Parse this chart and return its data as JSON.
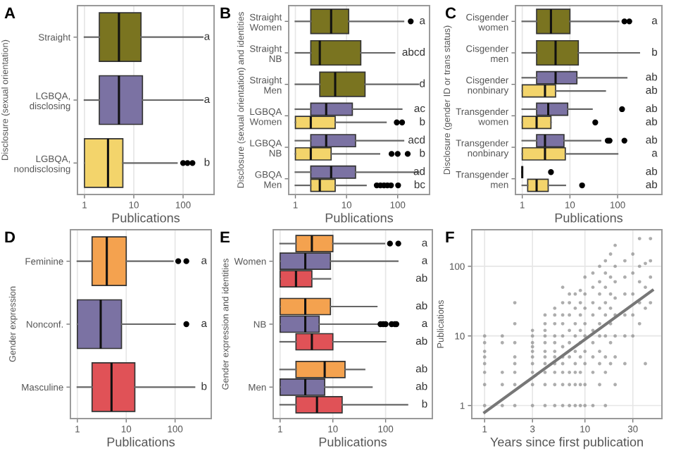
{
  "chart_data": [
    {
      "type": "box",
      "title": "A",
      "orientation": "horizontal",
      "xlabel": "Publications",
      "ylabel": "Disclosure (sexual orientation)",
      "log": "x",
      "grid": "x",
      "xlim": [
        0.72,
        425
      ],
      "xticks": [
        1,
        10,
        100
      ],
      "categories": [
        "Straight",
        "LGBQA,\ndisclosing",
        "LGBQA,\nnondisclosing"
      ],
      "series": [
        {
          "colors": [
            "#7a7420",
            "#7b72a3",
            "#f3d46b"
          ],
          "value_labels": [
            "a",
            "a",
            "b"
          ],
          "boxes": [
            {
              "low": 1,
              "q1": 2,
              "median": 5,
              "q3": 14,
              "high": 250
            },
            {
              "low": 1,
              "q1": 2,
              "median": 5,
              "q3": 15,
              "high": 250
            },
            {
              "low": 1,
              "q1": 1,
              "median": 3,
              "q3": 6,
              "high": 75,
              "outliers": [
                100,
                123,
                155
              ]
            }
          ]
        }
      ]
    },
    {
      "type": "box",
      "title": "B",
      "orientation": "horizontal",
      "xlabel": "Publications",
      "ylabel": "Disclosure (sexual orientation) and identities",
      "log": "x",
      "grid": "x",
      "xlim": [
        0.74,
        420
      ],
      "xticks": [
        1,
        10,
        100
      ],
      "categories": [
        "Straight\nWomen",
        "Straight\nNB",
        "Straight\nMen",
        "LGBQA\nWomen",
        "LGBQA\nNB",
        "GBQA\nMen"
      ],
      "series": [
        {
          "color": "#7a7420",
          "value_labels": [
            "a",
            "abcd",
            "d",
            null,
            null,
            null
          ],
          "boxes": [
            {
              "low": 1,
              "q1": 2,
              "median": 5,
              "q3": 11,
              "high": 130,
              "outliers": [
                180
              ]
            },
            {
              "low": 1,
              "q1": 2,
              "median": 3,
              "q3": 19,
              "high": 87
            },
            {
              "low": 1,
              "q1": 3,
              "median": 6,
              "q3": 23,
              "high": 256
            },
            null,
            null,
            null
          ]
        },
        {
          "color": "#7b72a3",
          "value_labels": [
            null,
            null,
            null,
            "ac",
            "acd",
            "ad"
          ],
          "boxes": [
            null,
            null,
            null,
            {
              "low": 1,
              "q1": 2,
              "median": 4,
              "q3": 13,
              "high": 120
            },
            {
              "low": 1,
              "q1": 2,
              "median": 4,
              "q3": 15,
              "high": 130
            },
            {
              "low": 1,
              "q1": 2,
              "median": 5,
              "q3": 15,
              "high": 256
            }
          ]
        },
        {
          "color": "#f3d46b",
          "value_labels": [
            null,
            null,
            null,
            "b",
            "b",
            "bc"
          ],
          "boxes": [
            null,
            null,
            null,
            {
              "low": 1,
              "q1": 1,
              "median": 2,
              "q3": 6,
              "high": 59,
              "outliers": [
                96,
                122
              ]
            },
            {
              "low": 1,
              "q1": 1,
              "median": 2,
              "q3": 5,
              "high": 44,
              "outliers": [
                76,
                100,
                157
              ]
            },
            {
              "low": 1,
              "q1": 2,
              "median": 3,
              "q3": 6,
              "high": 24,
              "outliers": [
                39,
                46,
                54,
                63,
                74,
                102
              ]
            }
          ]
        }
      ]
    },
    {
      "type": "box",
      "title": "C",
      "orientation": "horizontal",
      "xlabel": "Publications",
      "ylabel": "Disclosure (gender ID or trans status)",
      "log": "x",
      "grid": "x",
      "xlim": [
        0.72,
        850
      ],
      "xticks": [
        1,
        10,
        100
      ],
      "categories": [
        "Cisgender\nwomen",
        "Cisgender\nmen",
        "Cisgender\nnonbinary",
        "Transgender\nwomen",
        "Transgender\nnonbinary",
        "Transgender\nmen"
      ],
      "series": [
        {
          "color": "#7a7420",
          "value_labels": [
            "a",
            "b",
            null,
            null,
            null,
            null
          ],
          "boxes": [
            {
              "low": 1,
              "q1": 2,
              "median": 4,
              "q3": 10,
              "high": 105,
              "outliers": [
                139,
                176
              ]
            },
            {
              "low": 1,
              "q1": 2,
              "median": 5,
              "q3": 15,
              "high": 285
            },
            null,
            null,
            null,
            null
          ]
        },
        {
          "color": "#7b72a3",
          "value_labels": [
            null,
            null,
            "ab",
            "ab",
            "ab",
            "ab"
          ],
          "boxes": [
            null,
            null,
            {
              "low": 1,
              "q1": 2,
              "median": 5,
              "q3": 14,
              "high": 155
            },
            {
              "low": 1,
              "q1": 2,
              "median": 3.5,
              "q3": 9,
              "high": 29,
              "outliers": [
                124
              ]
            },
            {
              "low": 1,
              "q1": 2,
              "median": 3,
              "q3": 7.5,
              "high": 44,
              "outliers": [
                62,
                68,
                139
              ]
            },
            {
              "low": 1,
              "q1": 1,
              "median": 1,
              "q3": 1,
              "high": 1,
              "outliers": [
                4
              ]
            }
          ]
        },
        {
          "color": "#f3d46b",
          "value_labels": [
            null,
            null,
            "ab",
            "ab",
            "a",
            "ab"
          ],
          "boxes": [
            null,
            null,
            {
              "low": 1,
              "q1": 1,
              "median": 3,
              "q3": 5,
              "high": 55
            },
            {
              "low": 1,
              "q1": 1,
              "median": 2,
              "q3": 4,
              "high": 4,
              "outliers": [
                34
              ]
            },
            {
              "low": 1,
              "q1": 1,
              "median": 3,
              "q3": 8,
              "high": 100
            },
            {
              "low": 1,
              "q1": 1.3,
              "median": 2,
              "q3": 3.5,
              "high": 8,
              "outliers": [
                18
              ]
            }
          ]
        }
      ]
    },
    {
      "type": "box",
      "title": "D",
      "orientation": "horizontal",
      "xlabel": "Publications",
      "ylabel": "Gender expression",
      "log": "x",
      "grid": "x",
      "xlim": [
        0.72,
        550
      ],
      "xticks": [
        1,
        10,
        100
      ],
      "categories": [
        "Feminine",
        "Nonconf.",
        "Masculine"
      ],
      "series": [
        {
          "colors": [
            "#f4a24f",
            "#7b72a3",
            "#e05257"
          ],
          "value_labels": [
            "a",
            "a",
            "b"
          ],
          "boxes": [
            {
              "low": 1,
              "q1": 2,
              "median": 4,
              "q3": 10,
              "high": 90,
              "outliers": [
                116,
                170
              ]
            },
            {
              "low": 1,
              "q1": 1,
              "median": 3,
              "q3": 8,
              "high": 100,
              "outliers": [
                170
              ]
            },
            {
              "low": 1,
              "q1": 2,
              "median": 5,
              "q3": 15,
              "high": 250
            }
          ]
        }
      ]
    },
    {
      "type": "box",
      "title": "E",
      "orientation": "horizontal",
      "xlabel": "Publications",
      "ylabel": "Gender expression and identities",
      "log": "x",
      "grid": "x",
      "xlim": [
        0.74,
        770
      ],
      "xticks": [
        1,
        10,
        100
      ],
      "categories": [
        "Women",
        "NB",
        "Men"
      ],
      "series": [
        {
          "color": "#f4a24f",
          "value_labels": [
            "a",
            "ab",
            "ab"
          ],
          "boxes": [
            {
              "low": 1,
              "q1": 2,
              "median": 4,
              "q3": 10,
              "high": 95,
              "outliers": [
                121,
                174
              ]
            },
            {
              "low": 1,
              "q1": 1,
              "median": 3,
              "q3": 9,
              "high": 68
            },
            {
              "low": 1,
              "q1": 2,
              "median": 7,
              "q3": 17,
              "high": 40
            }
          ]
        },
        {
          "color": "#7b72a3",
          "value_labels": [
            "a",
            "a",
            "ab"
          ],
          "boxes": [
            {
              "low": 1,
              "q1": 1,
              "median": 3,
              "q3": 9,
              "high": 170
            },
            {
              "low": 1,
              "q1": 1,
              "median": 3,
              "q3": 5.5,
              "high": 70,
              "outliers": [
                80,
                90,
                100,
                130,
                150,
                160
              ]
            },
            {
              "low": 1,
              "q1": 1,
              "median": 3,
              "q3": 7,
              "high": 55
            }
          ]
        },
        {
          "color": "#e05257",
          "value_labels": [
            "ab",
            "ab",
            "b"
          ],
          "boxes": [
            {
              "low": 1,
              "q1": 1,
              "median": 2,
              "q3": 4,
              "high": 9
            },
            {
              "low": 1,
              "q1": 2,
              "median": 4,
              "q3": 10,
              "high": 100
            },
            {
              "low": 1,
              "q1": 2,
              "median": 5,
              "q3": 15,
              "high": 260
            }
          ]
        }
      ]
    },
    {
      "type": "scatter",
      "title": "F",
      "xlabel": "Years since first publication",
      "ylabel": "Publications",
      "log": "xy",
      "grid": true,
      "xlim": [
        0.745,
        58.5
      ],
      "ylim": [
        0.65,
        335
      ],
      "xticks": [
        1,
        3,
        10,
        30
      ],
      "yticks": [
        1,
        10,
        100
      ],
      "series": [
        {
          "type": "scatter",
          "color": "#8a8a8a",
          "x": [
            1,
            1,
            1,
            1,
            1,
            1,
            1,
            1,
            1.5,
            1.5,
            1.5,
            1.5,
            1.5,
            2,
            2,
            2,
            2,
            2,
            2,
            2,
            2,
            3,
            3,
            3,
            3,
            3,
            3,
            3,
            3,
            3,
            3,
            4,
            4,
            4,
            4,
            4,
            4,
            4,
            4,
            4,
            4,
            4,
            5,
            5,
            5,
            5,
            5,
            5,
            5,
            5,
            5,
            5,
            5,
            6,
            6,
            6,
            6,
            6,
            6,
            6,
            6,
            6,
            6,
            6,
            7,
            7,
            7,
            7,
            7,
            7,
            7,
            7,
            7,
            8,
            8,
            8,
            8,
            8,
            8,
            8,
            8,
            8,
            9,
            9,
            9,
            9,
            9,
            9,
            9,
            9,
            9,
            10,
            10,
            10,
            10,
            10,
            10,
            10,
            10,
            10,
            12,
            12,
            12,
            12,
            12,
            12,
            12,
            12,
            12,
            14,
            14,
            14,
            14,
            14,
            14,
            14,
            14,
            14,
            16,
            16,
            16,
            16,
            16,
            16,
            16,
            16,
            16,
            18,
            18,
            18,
            18,
            18,
            18,
            18,
            20,
            20,
            20,
            20,
            20,
            20,
            20,
            20,
            25,
            25,
            25,
            25,
            25,
            25,
            30,
            30,
            30,
            30,
            30,
            35,
            35,
            35,
            35,
            35,
            40,
            40,
            40,
            40,
            45,
            45,
            45,
            45
          ],
          "values": [
            1,
            2,
            3,
            4,
            5,
            6,
            8,
            10,
            1,
            2,
            3,
            8,
            10,
            1,
            2,
            3,
            4,
            5,
            8,
            15,
            30,
            1,
            2,
            3,
            4,
            5,
            6,
            7,
            8,
            10,
            12,
            1,
            2,
            3,
            4,
            5,
            6,
            8,
            10,
            12,
            15,
            20,
            1,
            2,
            3,
            4,
            5,
            6,
            8,
            10,
            15,
            20,
            25,
            1,
            2,
            3,
            4,
            5,
            7,
            10,
            15,
            20,
            30,
            50,
            1,
            2,
            3,
            5,
            8,
            12,
            20,
            30,
            40,
            1,
            2,
            3,
            4,
            6,
            10,
            15,
            25,
            40,
            1,
            2,
            3,
            5,
            8,
            12,
            20,
            30,
            45,
            1,
            2,
            4,
            6,
            10,
            15,
            25,
            40,
            70,
            1,
            3,
            5,
            8,
            12,
            20,
            30,
            50,
            80,
            2,
            4,
            6,
            10,
            15,
            25,
            40,
            60,
            100,
            1,
            3,
            5,
            10,
            20,
            30,
            50,
            80,
            120,
            4,
            8,
            15,
            25,
            40,
            70,
            150,
            2,
            5,
            10,
            20,
            35,
            60,
            100,
            200,
            4,
            10,
            20,
            40,
            70,
            120,
            10,
            20,
            40,
            80,
            150,
            15,
            30,
            60,
            100,
            250,
            4,
            25,
            50,
            110,
            30,
            70,
            120,
            250
          ]
        },
        {
          "type": "line",
          "color": "#777777",
          "x": [
            1,
            47
          ],
          "values": [
            0.8,
            45
          ]
        }
      ]
    }
  ]
}
